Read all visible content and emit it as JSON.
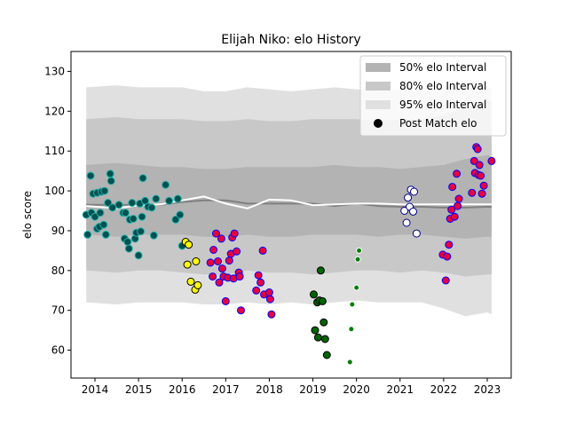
{
  "chart_data": {
    "type": "scatter",
    "title": "Elijah Niko: elo History",
    "xlabel": "",
    "ylabel": "elo score",
    "xlim": [
      2013.45,
      2023.55
    ],
    "ylim": [
      53,
      135
    ],
    "xticks": [
      2014,
      2015,
      2016,
      2017,
      2018,
      2019,
      2020,
      2021,
      2022,
      2023
    ],
    "yticks": [
      60,
      70,
      80,
      90,
      100,
      110,
      120,
      130
    ],
    "legend_position": "top-right",
    "grid": false,
    "legend": [
      {
        "label": "50% elo Interval",
        "kind": "patch",
        "color": "#b3b3b3"
      },
      {
        "label": "80% elo Interval",
        "kind": "patch",
        "color": "#c8c8c8"
      },
      {
        "label": "95% elo Interval",
        "kind": "patch",
        "color": "#e0e0e0"
      },
      {
        "label": "Post Match elo",
        "kind": "marker",
        "color": "#000000"
      }
    ],
    "bands": {
      "x": [
        2013.8,
        2014.5,
        2015.0,
        2015.5,
        2016.0,
        2016.5,
        2017.0,
        2017.5,
        2018.0,
        2018.5,
        2019.0,
        2019.5,
        2020.0,
        2020.5,
        2021.0,
        2021.5,
        2022.0,
        2022.5,
        2023.0,
        2023.1
      ],
      "p95_hi": [
        126,
        126.5,
        126,
        126,
        126,
        125,
        125,
        126,
        125.5,
        125,
        125.5,
        126,
        125.5,
        125,
        125.5,
        125,
        126,
        126.5,
        126,
        126
      ],
      "p95_lo": [
        72,
        71.5,
        72,
        72,
        72,
        71.5,
        71.5,
        72,
        71.5,
        72,
        71.5,
        72,
        72.5,
        72,
        72,
        72,
        70.5,
        68.5,
        69.5,
        69
      ],
      "p80_hi": [
        118,
        118.5,
        118,
        118,
        118,
        117.5,
        117.5,
        118,
        117.5,
        117.5,
        118,
        118,
        118,
        117.5,
        118,
        118,
        119,
        121,
        123,
        122
      ],
      "p80_lo": [
        80,
        79.5,
        80,
        80,
        79.5,
        79,
        79,
        80,
        79.5,
        79.5,
        79,
        79.5,
        80,
        80,
        79.5,
        80,
        79.5,
        78.5,
        79,
        79
      ],
      "p50_hi": [
        106.5,
        107,
        106.5,
        106,
        106,
        105.5,
        105.5,
        106,
        106,
        106,
        106,
        106.5,
        106,
        106,
        105.5,
        106,
        106.5,
        108,
        109,
        108.5
      ],
      "p50_lo": [
        89,
        88.5,
        89,
        89,
        89,
        88.5,
        88.5,
        89,
        88.5,
        88.5,
        89,
        89,
        89,
        88.5,
        89,
        89,
        88.5,
        88,
        88.5,
        88.5
      ]
    },
    "series": [
      {
        "type": "line",
        "color": "#808080",
        "points": [
          [
            2013.8,
            96.5
          ],
          [
            2014.5,
            96.5
          ],
          [
            2015.0,
            96.5
          ],
          [
            2015.5,
            96.5
          ],
          [
            2016.0,
            97.2
          ],
          [
            2016.5,
            97.6
          ],
          [
            2017.0,
            97.6
          ],
          [
            2017.5,
            96.8
          ],
          [
            2018.0,
            96.8
          ],
          [
            2018.5,
            96.8
          ],
          [
            2019.0,
            96.8
          ],
          [
            2019.5,
            96.2
          ],
          [
            2020.0,
            96.8
          ],
          [
            2020.5,
            96.2
          ],
          [
            2021.0,
            96.0
          ],
          [
            2021.5,
            96.0
          ],
          [
            2022.0,
            95.8
          ],
          [
            2022.5,
            95.8
          ],
          [
            2023.0,
            96.0
          ],
          [
            2023.1,
            96.0
          ]
        ]
      },
      {
        "type": "line",
        "color": "#ffffff",
        "points": [
          [
            2013.8,
            96.2
          ],
          [
            2014.5,
            95.6
          ],
          [
            2015.0,
            96.4
          ],
          [
            2015.5,
            96.6
          ],
          [
            2016.0,
            97.6
          ],
          [
            2016.5,
            98.6
          ],
          [
            2017.0,
            96.8
          ],
          [
            2017.5,
            95.6
          ],
          [
            2018.0,
            97.8
          ],
          [
            2018.5,
            97.6
          ],
          [
            2019.0,
            96.4
          ],
          [
            2019.5,
            96.6
          ],
          [
            2020.0,
            96.8
          ],
          [
            2020.5,
            96.8
          ],
          [
            2021.0,
            96.6
          ],
          [
            2021.5,
            96.6
          ],
          [
            2022.0,
            96.6
          ],
          [
            2022.5,
            96.6
          ],
          [
            2023.0,
            96.6
          ],
          [
            2023.1,
            96.6
          ]
        ]
      },
      {
        "type": "scatter",
        "fill": "#005050",
        "edge": "#20b2aa",
        "r": 4,
        "points": [
          [
            2013.8,
            94
          ],
          [
            2013.83,
            89
          ],
          [
            2013.9,
            103.8
          ],
          [
            2013.92,
            94.5
          ],
          [
            2013.96,
            99.3
          ],
          [
            2014.0,
            93.5
          ],
          [
            2014.05,
            99.5
          ],
          [
            2014.05,
            90.5
          ],
          [
            2014.1,
            91
          ],
          [
            2014.12,
            94.5
          ],
          [
            2014.15,
            99.8
          ],
          [
            2014.2,
            91.5
          ],
          [
            2014.22,
            100
          ],
          [
            2014.25,
            89
          ],
          [
            2014.3,
            97
          ],
          [
            2014.35,
            104.3
          ],
          [
            2014.37,
            102.5
          ],
          [
            2014.4,
            95.8
          ],
          [
            2014.55,
            96.5
          ],
          [
            2014.65,
            94.5
          ],
          [
            2014.68,
            88
          ],
          [
            2014.7,
            94.5
          ],
          [
            2014.75,
            87.2
          ],
          [
            2014.78,
            85.5
          ],
          [
            2014.8,
            92.8
          ],
          [
            2014.85,
            97
          ],
          [
            2014.88,
            93
          ],
          [
            2014.92,
            88
          ],
          [
            2014.95,
            89.5
          ],
          [
            2015.0,
            83.8
          ],
          [
            2015.03,
            96.8
          ],
          [
            2015.05,
            89.8
          ],
          [
            2015.08,
            93.5
          ],
          [
            2015.1,
            103.2
          ],
          [
            2015.15,
            97.5
          ],
          [
            2015.22,
            96
          ],
          [
            2015.3,
            95.8
          ],
          [
            2015.35,
            88.8
          ],
          [
            2015.4,
            98
          ],
          [
            2015.62,
            101.5
          ],
          [
            2015.7,
            97.5
          ],
          [
            2015.85,
            92.8
          ],
          [
            2015.9,
            98
          ],
          [
            2015.95,
            94
          ],
          [
            2016.0,
            86.2
          ]
        ]
      },
      {
        "type": "scatter",
        "fill": "#ffff00",
        "edge": "#000000",
        "r": 4,
        "points": [
          [
            2016.08,
            87.2
          ],
          [
            2016.12,
            81.5
          ],
          [
            2016.15,
            86.5
          ],
          [
            2016.2,
            77.2
          ],
          [
            2016.3,
            75.2
          ],
          [
            2016.32,
            82.3
          ],
          [
            2016.36,
            76.3
          ]
        ]
      },
      {
        "type": "scatter",
        "fill": "#e8003c",
        "edge": "#0000ff",
        "r": 4,
        "points": [
          [
            2016.65,
            82
          ],
          [
            2016.7,
            78.5
          ],
          [
            2016.72,
            85.2
          ],
          [
            2016.78,
            89.3
          ],
          [
            2016.82,
            82.3
          ],
          [
            2016.85,
            77
          ],
          [
            2016.9,
            88
          ],
          [
            2016.92,
            80.5
          ],
          [
            2016.95,
            78.5
          ],
          [
            2017.0,
            72.3
          ],
          [
            2017.05,
            78.2
          ],
          [
            2017.08,
            82.5
          ],
          [
            2017.12,
            84.2
          ],
          [
            2017.15,
            88.3
          ],
          [
            2017.18,
            78
          ],
          [
            2017.2,
            89.3
          ],
          [
            2017.25,
            84.8
          ],
          [
            2017.3,
            79.5
          ],
          [
            2017.32,
            78.5
          ],
          [
            2017.35,
            70
          ],
          [
            2017.7,
            75
          ],
          [
            2017.75,
            78.8
          ],
          [
            2017.8,
            77
          ],
          [
            2017.85,
            85
          ],
          [
            2017.88,
            74
          ],
          [
            2018.0,
            74.5
          ],
          [
            2018.02,
            72.8
          ],
          [
            2018.05,
            69
          ]
        ]
      },
      {
        "type": "scatter",
        "fill": "#006400",
        "edge": "#000000",
        "r": 4,
        "points": [
          [
            2019.02,
            74
          ],
          [
            2019.05,
            65
          ],
          [
            2019.1,
            72
          ],
          [
            2019.12,
            63.2
          ],
          [
            2019.15,
            72.5
          ],
          [
            2019.18,
            80
          ],
          [
            2019.22,
            72.3
          ],
          [
            2019.25,
            67
          ],
          [
            2019.28,
            62.8
          ],
          [
            2019.32,
            58.8
          ]
        ]
      },
      {
        "type": "scatter",
        "fill": "#008000",
        "edge": "#ffffff",
        "r": 3,
        "points": [
          [
            2019.85,
            57
          ],
          [
            2019.88,
            65.3
          ],
          [
            2019.9,
            71.5
          ],
          [
            2020.0,
            75.7
          ],
          [
            2020.03,
            82.8
          ],
          [
            2020.06,
            85
          ]
        ]
      },
      {
        "type": "scatter",
        "fill": "#ffffff",
        "edge": "#00008b",
        "r": 4,
        "points": [
          [
            2021.1,
            95
          ],
          [
            2021.15,
            92
          ],
          [
            2021.18,
            98.3
          ],
          [
            2021.22,
            96
          ],
          [
            2021.25,
            100.3
          ],
          [
            2021.3,
            94.8
          ],
          [
            2021.32,
            99.8
          ],
          [
            2021.38,
            89.3
          ]
        ]
      },
      {
        "type": "scatter",
        "fill": "#e8003c",
        "edge": "#0000ff",
        "r": 4,
        "points": [
          [
            2021.98,
            84
          ],
          [
            2022.05,
            77.5
          ],
          [
            2022.08,
            83.5
          ],
          [
            2022.12,
            86.5
          ],
          [
            2022.15,
            93
          ],
          [
            2022.18,
            95.3
          ],
          [
            2022.2,
            101
          ],
          [
            2022.25,
            93.5
          ],
          [
            2022.3,
            104.3
          ],
          [
            2022.32,
            96.2
          ],
          [
            2022.35,
            98
          ],
          [
            2022.65,
            99.5
          ],
          [
            2022.7,
            107.5
          ],
          [
            2022.72,
            104.5
          ],
          [
            2022.75,
            111
          ],
          [
            2022.78,
            110.5
          ],
          [
            2022.8,
            104
          ],
          [
            2022.82,
            106.5
          ],
          [
            2022.85,
            103.8
          ],
          [
            2022.88,
            99.3
          ],
          [
            2022.92,
            101.3
          ],
          [
            2023.1,
            107.5
          ]
        ]
      }
    ]
  }
}
